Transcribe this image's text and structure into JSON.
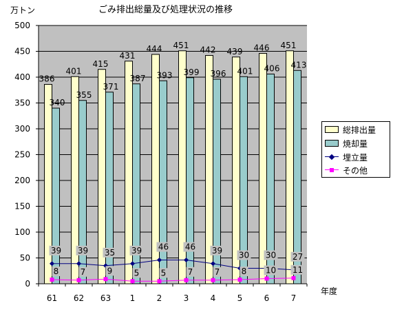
{
  "chart_data": {
    "type": "bar",
    "title": "ごみ排出総量及び処理状況の推移",
    "ylabel": "万トン",
    "xlabel": "年度",
    "categories": [
      "61",
      "62",
      "63",
      "1",
      "2",
      "3",
      "4",
      "5",
      "6",
      "7"
    ],
    "ylim": [
      0,
      500
    ],
    "yticks": [
      0,
      50,
      100,
      150,
      200,
      250,
      300,
      350,
      400,
      450,
      500
    ],
    "grid": true,
    "legend_position": "right",
    "series": [
      {
        "name": "総排出量",
        "kind": "bar",
        "color": "#ffffcc",
        "values": [
          386,
          401,
          415,
          431,
          444,
          451,
          442,
          439,
          446,
          451
        ]
      },
      {
        "name": "焼却量",
        "kind": "bar",
        "color": "#99cccc",
        "values": [
          340,
          355,
          371,
          387,
          393,
          399,
          396,
          401,
          406,
          413
        ]
      },
      {
        "name": "埋立量",
        "kind": "line",
        "color": "#000080",
        "marker": "diamond",
        "values": [
          39,
          39,
          35,
          39,
          46,
          46,
          39,
          30,
          30,
          27
        ]
      },
      {
        "name": "その他",
        "kind": "line",
        "color": "#ff00ff",
        "marker": "square",
        "values": [
          8,
          7,
          9,
          5,
          5,
          7,
          7,
          8,
          10,
          11
        ]
      }
    ]
  }
}
